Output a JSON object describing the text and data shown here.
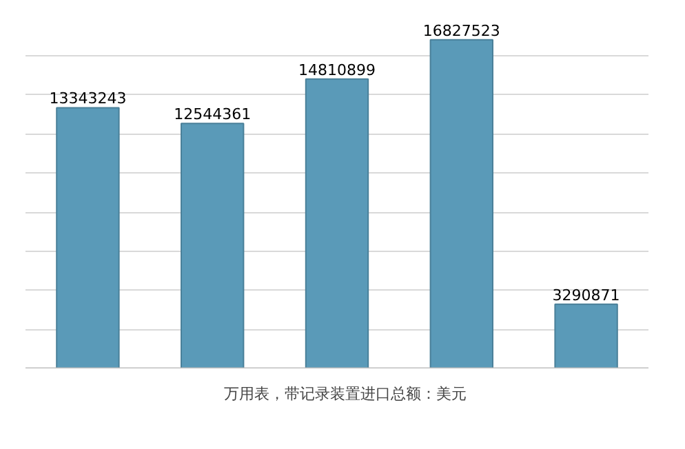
{
  "chart_data": {
    "type": "bar",
    "categories": [
      null,
      null,
      null,
      null,
      null
    ],
    "series": [
      {
        "name": "万用表，带记录装置进口总额：美元",
        "color": "#5a9ab8",
        "values": [
          13343243,
          12544361,
          14810899,
          16827523,
          3290871
        ]
      }
    ],
    "data_labels": true,
    "grid": "y",
    "legend": "bottom",
    "tick_labels": false
  }
}
